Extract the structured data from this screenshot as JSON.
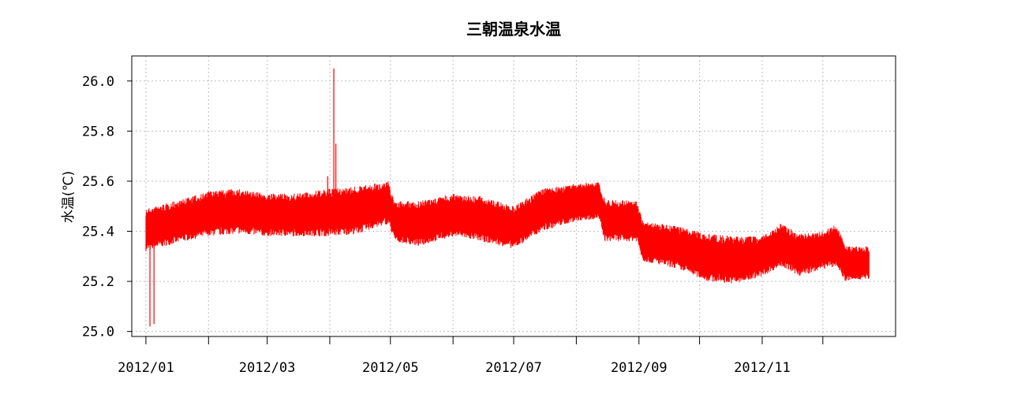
{
  "chart_data": {
    "type": "line",
    "title": "三朝温泉水温",
    "xlabel": "",
    "ylabel": "水温(℃)",
    "xlim": [
      "2011-12-25",
      "2013-01-06"
    ],
    "ylim": [
      24.98,
      26.1
    ],
    "yticks": [
      25.0,
      25.2,
      25.4,
      25.6,
      25.8,
      26.0
    ],
    "ytick_labels": [
      "25.0",
      "25.2",
      "25.4",
      "25.6",
      "25.8",
      "26.0"
    ],
    "xticks_major": [
      "2012-01-01",
      "2012-03-01",
      "2012-05-01",
      "2012-07-01",
      "2012-09-01",
      "2012-11-01"
    ],
    "xtick_labels": [
      "2012/01",
      "2012/03",
      "2012/05",
      "2012/07",
      "2012/09",
      "2012/11"
    ],
    "xticks_minor": [
      "2012-02-01",
      "2012-04-01",
      "2012-06-01",
      "2012-08-01",
      "2012-10-01",
      "2012-12-01"
    ],
    "grid": true,
    "series": [
      {
        "color": "#ff0000",
        "band": [
          {
            "date": "2012-01-01",
            "min": 25.32,
            "max": 25.49
          },
          {
            "date": "2012-01-10",
            "min": 25.34,
            "max": 25.51
          },
          {
            "date": "2012-01-20",
            "min": 25.36,
            "max": 25.53
          },
          {
            "date": "2012-02-01",
            "min": 25.38,
            "max": 25.56
          },
          {
            "date": "2012-02-15",
            "min": 25.39,
            "max": 25.57
          },
          {
            "date": "2012-03-01",
            "min": 25.38,
            "max": 25.55
          },
          {
            "date": "2012-03-15",
            "min": 25.38,
            "max": 25.55
          },
          {
            "date": "2012-04-01",
            "min": 25.38,
            "max": 25.57
          },
          {
            "date": "2012-04-15",
            "min": 25.39,
            "max": 25.58
          },
          {
            "date": "2012-04-30",
            "min": 25.43,
            "max": 25.6
          },
          {
            "date": "2012-05-03",
            "min": 25.36,
            "max": 25.52
          },
          {
            "date": "2012-05-15",
            "min": 25.34,
            "max": 25.52
          },
          {
            "date": "2012-06-01",
            "min": 25.38,
            "max": 25.55
          },
          {
            "date": "2012-06-15",
            "min": 25.36,
            "max": 25.54
          },
          {
            "date": "2012-07-01",
            "min": 25.33,
            "max": 25.5
          },
          {
            "date": "2012-07-15",
            "min": 25.4,
            "max": 25.57
          },
          {
            "date": "2012-08-01",
            "min": 25.44,
            "max": 25.59
          },
          {
            "date": "2012-08-12",
            "min": 25.45,
            "max": 25.6
          },
          {
            "date": "2012-08-15",
            "min": 25.36,
            "max": 25.53
          },
          {
            "date": "2012-08-31",
            "min": 25.36,
            "max": 25.52
          },
          {
            "date": "2012-09-03",
            "min": 25.28,
            "max": 25.44
          },
          {
            "date": "2012-09-20",
            "min": 25.25,
            "max": 25.42
          },
          {
            "date": "2012-10-05",
            "min": 25.2,
            "max": 25.39
          },
          {
            "date": "2012-10-20",
            "min": 25.19,
            "max": 25.38
          },
          {
            "date": "2012-11-01",
            "min": 25.22,
            "max": 25.38
          },
          {
            "date": "2012-11-10",
            "min": 25.26,
            "max": 25.43
          },
          {
            "date": "2012-11-20",
            "min": 25.22,
            "max": 25.39
          },
          {
            "date": "2012-12-01",
            "min": 25.25,
            "max": 25.4
          },
          {
            "date": "2012-12-08",
            "min": 25.26,
            "max": 25.43
          },
          {
            "date": "2012-12-12",
            "min": 25.2,
            "max": 25.34
          },
          {
            "date": "2012-12-24",
            "min": 25.21,
            "max": 25.34
          }
        ],
        "spikes": [
          {
            "date": "2012-01-03",
            "min": 25.02,
            "max": 25.4
          },
          {
            "date": "2012-01-05",
            "min": 25.03,
            "max": 25.45
          },
          {
            "date": "2012-03-31",
            "min": 25.4,
            "max": 25.62
          },
          {
            "date": "2012-04-03",
            "min": 25.4,
            "max": 26.05
          },
          {
            "date": "2012-04-04",
            "min": 25.45,
            "max": 25.75
          }
        ]
      }
    ]
  }
}
